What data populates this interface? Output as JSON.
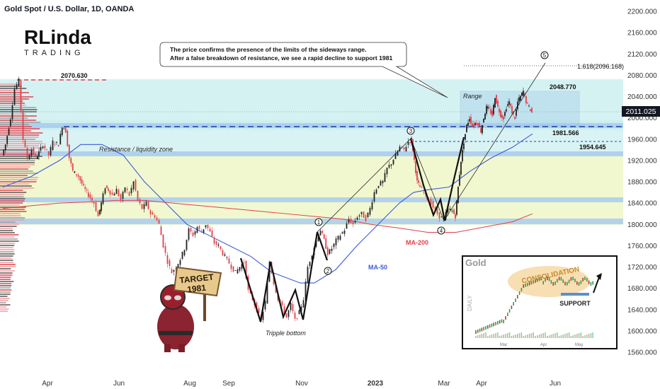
{
  "header": {
    "title": "Gold Spot / U.S. Dollar, 1D, OANDA"
  },
  "logo": {
    "text": "RLinda",
    "sub": "TRADING"
  },
  "chart_data": {
    "type": "line",
    "title": "Gold Spot / U.S. Dollar, 1D, OANDA",
    "ylim": [
      1560,
      2200
    ],
    "y_ticks": [
      1560,
      1600,
      1640,
      1680,
      1720,
      1760,
      1800,
      1840,
      1880,
      1920,
      1960,
      2000,
      2040,
      2080,
      2120,
      2160,
      2200
    ],
    "x_labels": [
      "Apr",
      "Jun",
      "Aug",
      "Sep",
      "Nov",
      "2023",
      "Mar",
      "Apr",
      "Jun"
    ],
    "current_price": "2011.025",
    "series": [
      {
        "name": "price",
        "points": [
          [
            0,
            1930
          ],
          [
            5,
            1950
          ],
          [
            12,
            2000
          ],
          [
            18,
            2055
          ],
          [
            24,
            2070
          ],
          [
            30,
            1960
          ],
          [
            36,
            1925
          ],
          [
            42,
            1940
          ],
          [
            48,
            1925
          ],
          [
            52,
            1935
          ],
          [
            58,
            1950
          ],
          [
            66,
            1930
          ],
          [
            72,
            1955
          ],
          [
            80,
            1950
          ],
          [
            85,
            1985
          ],
          [
            90,
            1975
          ],
          [
            95,
            1925
          ],
          [
            100,
            1900
          ],
          [
            108,
            1890
          ],
          [
            115,
            1870
          ],
          [
            122,
            1855
          ],
          [
            130,
            1840
          ],
          [
            136,
            1815
          ],
          [
            140,
            1840
          ],
          [
            146,
            1870
          ],
          [
            150,
            1865
          ],
          [
            156,
            1855
          ],
          [
            162,
            1865
          ],
          [
            168,
            1845
          ],
          [
            174,
            1870
          ],
          [
            180,
            1855
          ],
          [
            186,
            1880
          ],
          [
            192,
            1845
          ],
          [
            198,
            1830
          ],
          [
            204,
            1840
          ],
          [
            210,
            1820
          ],
          [
            216,
            1815
          ],
          [
            222,
            1800
          ],
          [
            228,
            1760
          ],
          [
            234,
            1730
          ],
          [
            240,
            1710
          ],
          [
            246,
            1720
          ],
          [
            252,
            1735
          ],
          [
            258,
            1755
          ],
          [
            264,
            1790
          ],
          [
            270,
            1780
          ],
          [
            276,
            1795
          ],
          [
            282,
            1785
          ],
          [
            288,
            1800
          ],
          [
            294,
            1785
          ],
          [
            300,
            1765
          ],
          [
            306,
            1760
          ],
          [
            312,
            1745
          ],
          [
            318,
            1735
          ],
          [
            324,
            1720
          ],
          [
            330,
            1710
          ],
          [
            336,
            1720
          ],
          [
            342,
            1730
          ],
          [
            348,
            1675
          ],
          [
            354,
            1660
          ],
          [
            360,
            1640
          ],
          [
            366,
            1620
          ],
          [
            372,
            1655
          ],
          [
            378,
            1730
          ],
          [
            384,
            1690
          ],
          [
            390,
            1660
          ],
          [
            396,
            1645
          ],
          [
            402,
            1625
          ],
          [
            408,
            1650
          ],
          [
            414,
            1620
          ],
          [
            420,
            1635
          ],
          [
            426,
            1660
          ],
          [
            432,
            1720
          ],
          [
            438,
            1745
          ],
          [
            444,
            1770
          ],
          [
            450,
            1790
          ],
          [
            455,
            1770
          ],
          [
            460,
            1745
          ],
          [
            466,
            1755
          ],
          [
            472,
            1770
          ],
          [
            478,
            1780
          ],
          [
            484,
            1790
          ],
          [
            490,
            1810
          ],
          [
            496,
            1800
          ],
          [
            502,
            1815
          ],
          [
            508,
            1820
          ],
          [
            514,
            1810
          ],
          [
            520,
            1830
          ],
          [
            526,
            1860
          ],
          [
            532,
            1875
          ],
          [
            538,
            1880
          ],
          [
            544,
            1905
          ],
          [
            550,
            1915
          ],
          [
            556,
            1930
          ],
          [
            562,
            1945
          ],
          [
            568,
            1940
          ],
          [
            574,
            1955
          ],
          [
            578,
            1960
          ],
          [
            582,
            1920
          ],
          [
            586,
            1880
          ],
          [
            590,
            1870
          ],
          [
            596,
            1860
          ],
          [
            600,
            1850
          ],
          [
            606,
            1840
          ],
          [
            612,
            1825
          ],
          [
            618,
            1815
          ],
          [
            624,
            1810
          ],
          [
            630,
            1830
          ],
          [
            636,
            1825
          ],
          [
            640,
            1815
          ],
          [
            644,
            1870
          ],
          [
            648,
            1920
          ],
          [
            652,
            1955
          ],
          [
            656,
            1985
          ],
          [
            660,
            2000
          ],
          [
            664,
            1985
          ],
          [
            668,
            1990
          ],
          [
            672,
            1990
          ],
          [
            676,
            1975
          ],
          [
            680,
            2000
          ],
          [
            684,
            2020
          ],
          [
            688,
            2015
          ],
          [
            692,
            2005
          ],
          [
            696,
            2040
          ],
          [
            700,
            2020
          ],
          [
            704,
            2005
          ],
          [
            708,
            2000
          ],
          [
            712,
            2020
          ],
          [
            716,
            2030
          ],
          [
            720,
            2010
          ],
          [
            724,
            2000
          ],
          [
            728,
            2030
          ],
          [
            732,
            2040
          ],
          [
            736,
            2050
          ],
          [
            740,
            2030
          ],
          [
            744,
            2020
          ],
          [
            748,
            2010
          ]
        ]
      },
      {
        "name": "MA-50",
        "points": [
          [
            0,
            1870
          ],
          [
            40,
            1890
          ],
          [
            80,
            1920
          ],
          [
            110,
            1950
          ],
          [
            140,
            1950
          ],
          [
            170,
            1930
          ],
          [
            200,
            1880
          ],
          [
            230,
            1840
          ],
          [
            260,
            1800
          ],
          [
            290,
            1780
          ],
          [
            320,
            1760
          ],
          [
            350,
            1740
          ],
          [
            380,
            1710
          ],
          [
            420,
            1690
          ],
          [
            440,
            1690
          ],
          [
            470,
            1715
          ],
          [
            500,
            1760
          ],
          [
            530,
            1800
          ],
          [
            560,
            1840
          ],
          [
            580,
            1860
          ],
          [
            600,
            1865
          ],
          [
            630,
            1870
          ],
          [
            660,
            1900
          ],
          [
            690,
            1925
          ],
          [
            720,
            1945
          ],
          [
            748,
            1970
          ]
        ]
      },
      {
        "name": "MA-200",
        "points": [
          [
            0,
            1830
          ],
          [
            40,
            1835
          ],
          [
            80,
            1840
          ],
          [
            120,
            1842
          ],
          [
            160,
            1845
          ],
          [
            200,
            1845
          ],
          [
            240,
            1840
          ],
          [
            280,
            1835
          ],
          [
            320,
            1830
          ],
          [
            360,
            1825
          ],
          [
            400,
            1820
          ],
          [
            440,
            1815
          ],
          [
            480,
            1810
          ],
          [
            520,
            1800
          ],
          [
            560,
            1793
          ],
          [
            600,
            1785
          ],
          [
            640,
            1785
          ],
          [
            680,
            1795
          ],
          [
            720,
            1805
          ],
          [
            748,
            1820
          ]
        ]
      }
    ],
    "levels": [
      {
        "name": "2070-level",
        "label": "2070.630",
        "value": 2070
      },
      {
        "name": "2048-level",
        "label": "2048.770",
        "value": 2048
      },
      {
        "name": "1981-level",
        "label": "1981.566",
        "value": 1981
      },
      {
        "name": "1954-level",
        "label": "1954.645",
        "value": 1954
      },
      {
        "name": "fib-level",
        "label": "1.618(2096.168)",
        "value": 2096
      }
    ],
    "annotations": {
      "callout_line1": "The price confirms the presence of the limits of the sideways range.",
      "callout_line2": "After a false breakdown of resistance, we see a rapid decline to support 1981",
      "resistance_zone": "Resistance / liquidity zone",
      "range": "Range",
      "ma200": "MA-200",
      "ma50": "MA-50",
      "tripple_bottom": "Tripple bottom",
      "waves": [
        "1",
        "2",
        "3",
        "4",
        "5"
      ],
      "target_line1": "TARGET",
      "target_line2": "1981"
    },
    "inset": {
      "title": "Gold",
      "side_label": "DAILY",
      "consolidation": "CONSOLIDATION",
      "support": "SUPPORT",
      "months": [
        "Mar",
        "Apr",
        "May"
      ]
    }
  },
  "colors": {
    "bull": "#222222",
    "bear": "#e0414a",
    "ma50": "#3d5bd9",
    "ma200": "#e0414a",
    "level_blue": "#1f3fa8",
    "band_blue": "#a9cdf0",
    "zone_cyan": "#c7eef0",
    "zone_yellow": "#eef7c4"
  }
}
